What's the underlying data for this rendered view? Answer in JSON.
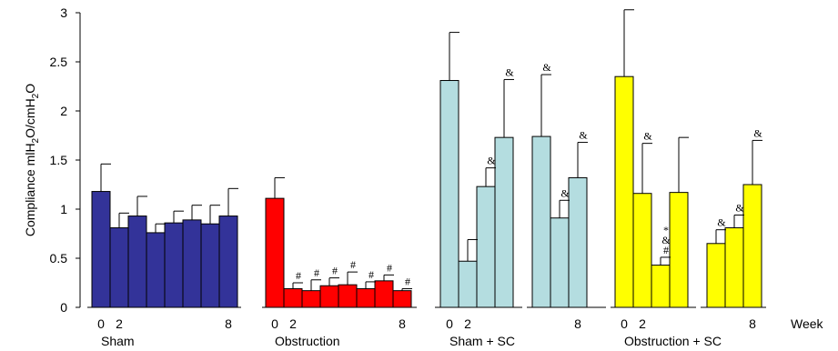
{
  "chart_data": {
    "type": "bar",
    "ylabel_parts": [
      "Compliance mlH",
      "2",
      "O/cmH",
      "2",
      "O"
    ],
    "xunit": "Week",
    "ylim": [
      0,
      3
    ],
    "yticks": [
      "0",
      "0.5",
      "1",
      "1.5",
      "2",
      "2.5",
      "3"
    ],
    "groups": [
      {
        "name": "Sham",
        "color": "#333399",
        "week_ticks": [
          {
            "label": "0",
            "bar": 0
          },
          {
            "label": "2",
            "bar": 1
          },
          {
            "label": "8",
            "bar": 7
          }
        ],
        "subgroups": [
          {
            "bars": [
              {
                "value": 1.18,
                "error": 0.28,
                "annotation": ""
              },
              {
                "value": 0.81,
                "error": 0.15,
                "annotation": ""
              },
              {
                "value": 0.93,
                "error": 0.2,
                "annotation": ""
              },
              {
                "value": 0.76,
                "error": 0.09,
                "annotation": ""
              },
              {
                "value": 0.86,
                "error": 0.12,
                "annotation": ""
              },
              {
                "value": 0.89,
                "error": 0.15,
                "annotation": ""
              },
              {
                "value": 0.85,
                "error": 0.19,
                "annotation": ""
              },
              {
                "value": 0.93,
                "error": 0.28,
                "annotation": ""
              }
            ]
          }
        ]
      },
      {
        "name": "Obstruction",
        "color": "#ff0000",
        "week_ticks": [
          {
            "label": "0",
            "bar": 0
          },
          {
            "label": "2",
            "bar": 1
          },
          {
            "label": "8",
            "bar": 7
          }
        ],
        "subgroups": [
          {
            "bars": [
              {
                "value": 1.11,
                "error": 0.21,
                "annotation": ""
              },
              {
                "value": 0.19,
                "error": 0.06,
                "annotation": "#"
              },
              {
                "value": 0.17,
                "error": 0.11,
                "annotation": "#"
              },
              {
                "value": 0.22,
                "error": 0.08,
                "annotation": "#"
              },
              {
                "value": 0.23,
                "error": 0.13,
                "annotation": "#"
              },
              {
                "value": 0.19,
                "error": 0.07,
                "annotation": "#"
              },
              {
                "value": 0.27,
                "error": 0.06,
                "annotation": "#"
              },
              {
                "value": 0.17,
                "error": 0.02,
                "annotation": "#"
              }
            ]
          }
        ]
      },
      {
        "name": "Sham + SC",
        "color": "#b4dde0",
        "week_ticks": [
          {
            "label": "0",
            "bar": 0
          },
          {
            "label": "2",
            "bar": 1
          },
          {
            "label": "8",
            "bar": 6
          }
        ],
        "subgroups": [
          {
            "bars": [
              {
                "value": 2.31,
                "error": 0.49,
                "annotation": ""
              },
              {
                "value": 0.47,
                "error": 0.22,
                "annotation": ""
              },
              {
                "value": 1.23,
                "error": 0.19,
                "annotation": "&"
              },
              {
                "value": 1.73,
                "error": 0.59,
                "annotation": "&"
              }
            ]
          },
          {
            "bars": [
              {
                "value": 1.74,
                "error": 0.63,
                "annotation": "&"
              },
              {
                "value": 0.91,
                "error": 0.18,
                "annotation": "&"
              },
              {
                "value": 1.32,
                "error": 0.36,
                "annotation": "&"
              }
            ]
          }
        ]
      },
      {
        "name": "Obstruction + SC",
        "color": "#ffff00",
        "week_ticks": [
          {
            "label": "0",
            "bar": 0
          },
          {
            "label": "2",
            "bar": 1
          },
          {
            "label": "8",
            "bar": 6
          }
        ],
        "subgroups": [
          {
            "bars": [
              {
                "value": 2.35,
                "error": 0.68,
                "annotation": ""
              },
              {
                "value": 1.16,
                "error": 0.51,
                "annotation": "&"
              },
              {
                "value": 0.43,
                "error": 0.08,
                "annotation": "#&*"
              },
              {
                "value": 1.17,
                "error": 0.56,
                "annotation": ""
              }
            ]
          },
          {
            "bars": [
              {
                "value": 0.65,
                "error": 0.14,
                "annotation": "&"
              },
              {
                "value": 0.81,
                "error": 0.13,
                "annotation": "&"
              },
              {
                "value": 1.25,
                "error": 0.45,
                "annotation": "&"
              }
            ]
          }
        ]
      }
    ]
  }
}
